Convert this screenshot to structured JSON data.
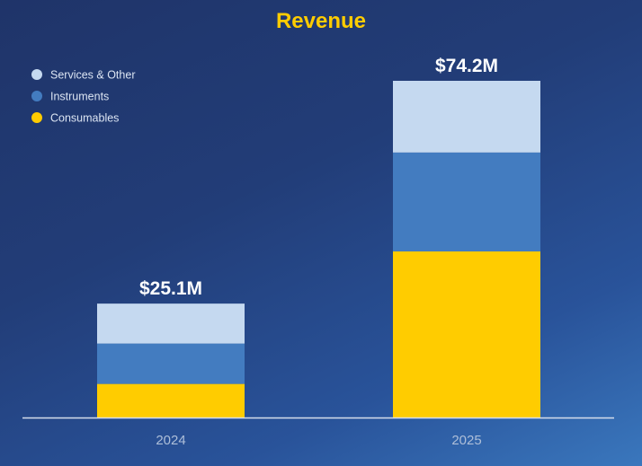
{
  "chart_data": {
    "type": "bar",
    "stacked": true,
    "title": "Revenue",
    "xlabel": "",
    "ylabel": "",
    "categories": [
      "2024",
      "2025"
    ],
    "series": [
      {
        "name": "Consumables",
        "color": "#ffcc00",
        "values": [
          7.4,
          36.6
        ]
      },
      {
        "name": "Instruments",
        "color": "#437cc0",
        "values": [
          8.9,
          21.8
        ]
      },
      {
        "name": "Services & Other",
        "color": "#c5d9f0",
        "values": [
          8.8,
          15.8
        ]
      }
    ],
    "totals": [
      25.1,
      74.2
    ],
    "total_labels": [
      "$25.1M",
      "$74.2M"
    ],
    "units": "$M",
    "ylim": [
      0,
      74.2
    ],
    "grid": false,
    "legend": {
      "position": "top-left",
      "order": [
        "Services & Other",
        "Instruments",
        "Consumables"
      ]
    },
    "colors": {
      "title": "#ffcc00",
      "total_label": "#ffffff",
      "tick_label": "#aebfd9",
      "legend_text": "#dbe4f2",
      "axis_line": "#d6deeb"
    }
  }
}
